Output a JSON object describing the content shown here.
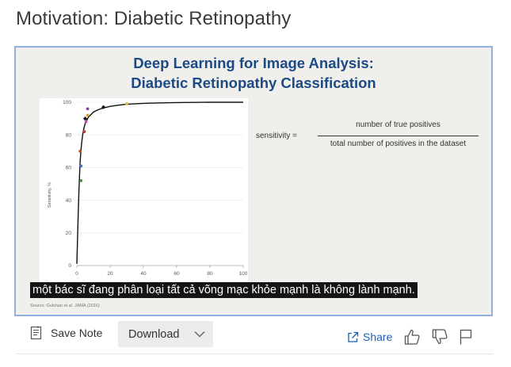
{
  "page": {
    "title": "Motivation: Diabetic Retinopathy"
  },
  "slide": {
    "title_line1": "Deep Learning for Image Analysis:",
    "title_line2": "Diabetic Retinopathy Classification",
    "source": "Source: Gulshan et al. JAMA (2016)",
    "formula": {
      "lhs": "sensitivity =",
      "numerator": "number of true positives",
      "denominator": "total number of positives in the dataset"
    },
    "subtitle": "một bác sĩ đang phân loại tất cả võng mạc khỏe mạnh là không lành mạnh."
  },
  "chart_data": {
    "type": "line",
    "ylabel": "Sensitivity, %",
    "xlim": [
      0,
      100
    ],
    "ylim": [
      0,
      100
    ],
    "x_ticks": [
      "0",
      "20",
      "40",
      "60",
      "80",
      "100"
    ],
    "y_ticks": [
      "0",
      "20",
      "40",
      "60",
      "80",
      "100"
    ],
    "curve": {
      "x": [
        0,
        0.4,
        0.8,
        1.2,
        1.6,
        2,
        2.5,
        3,
        3.5,
        4,
        5,
        6,
        7,
        8,
        10,
        13,
        16,
        20,
        25,
        30,
        40,
        50,
        60,
        70,
        80,
        90,
        100
      ],
      "y": [
        1,
        16,
        31,
        44,
        55,
        64,
        71,
        76,
        80,
        83,
        87,
        89,
        91,
        92,
        94,
        95.5,
        96.5,
        97.5,
        98.2,
        98.8,
        99.3,
        99.6,
        99.8,
        99.9,
        100,
        100,
        100
      ],
      "color": "#111111"
    },
    "operating_points": [
      {
        "x": 5,
        "y": 90,
        "color": "#111111",
        "shape": "diamond"
      },
      {
        "x": 16,
        "y": 97,
        "color": "#111111",
        "shape": "diamond"
      }
    ],
    "grader_points": [
      {
        "x": 6.5,
        "y": 96,
        "color": "#8a3fb5"
      },
      {
        "x": 6.5,
        "y": 92,
        "color": "#e8961f"
      },
      {
        "x": 5.5,
        "y": 88,
        "color": "#d94aa0"
      },
      {
        "x": 4.5,
        "y": 82,
        "color": "#c43b33"
      },
      {
        "x": 2,
        "y": 70,
        "color": "#a8541f"
      },
      {
        "x": 2.5,
        "y": 61,
        "color": "#3a6fc2"
      },
      {
        "x": 2.5,
        "y": 52,
        "color": "#3a9a48"
      },
      {
        "x": 30,
        "y": 99,
        "color": "#e8b63b"
      }
    ]
  },
  "toolbar": {
    "save_note_label": "Save Note",
    "download_label": "Download",
    "share_label": "Share"
  },
  "icons": {
    "note": "note-icon",
    "chevron": "chevron-down-icon",
    "share": "share-icon",
    "thumbs_up": "thumbs-up-icon",
    "thumbs_down": "thumbs-down-icon",
    "flag": "flag-icon"
  },
  "colors": {
    "slide_title": "#1c4a86",
    "frame_border": "#8fb1df",
    "share_link": "#1a62b8"
  }
}
